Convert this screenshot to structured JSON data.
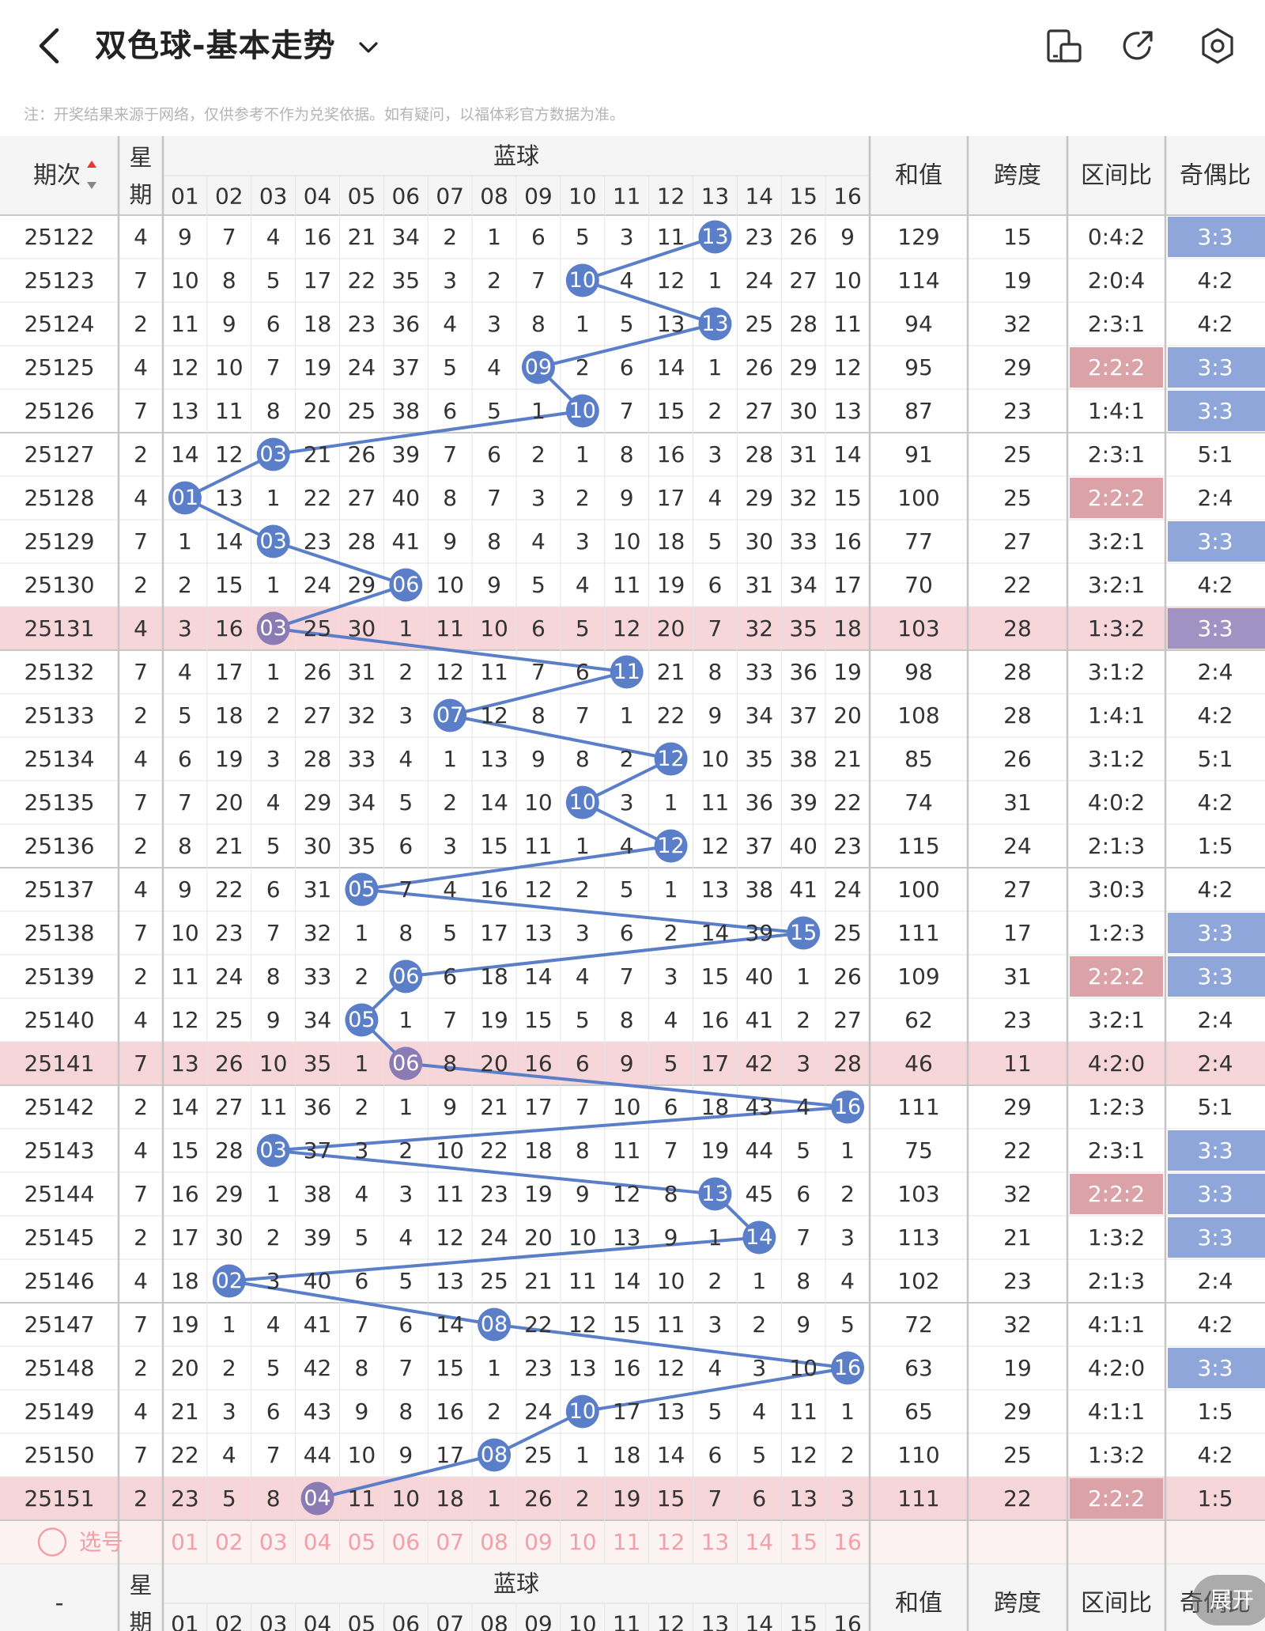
{
  "header": {
    "title": "双色球-基本走势",
    "icons": [
      "back-arrow-icon",
      "chevron-down-icon",
      "device-icon",
      "share-icon",
      "settings-icon"
    ]
  },
  "notice": "注：开奖结果来源于网络，仅供参考不作为兑奖依据。如有疑问，以福体彩官方数据为准。",
  "table": {
    "col_period": "期次",
    "col_week": "星期",
    "col_blue": "蓝球",
    "col_sum": "和值",
    "col_span": "跨度",
    "col_zone": "区间比",
    "col_odd": "奇偶比",
    "blue_numbers": [
      "01",
      "02",
      "03",
      "04",
      "05",
      "06",
      "07",
      "08",
      "09",
      "10",
      "11",
      "12",
      "13",
      "14",
      "15",
      "16"
    ],
    "rows": [
      {
        "period": "25122",
        "week": "4",
        "miss": [
          "9",
          "7",
          "4",
          "16",
          "21",
          "34",
          "2",
          "1",
          "6",
          "5",
          "3",
          "11",
          "13",
          "23",
          "26",
          "9"
        ],
        "blue": "13",
        "sum": "129",
        "span": "15",
        "zone": "0:4:2",
        "odd": "3:3",
        "zone_hl": false,
        "odd_hl": true,
        "row_hl": false
      },
      {
        "period": "25123",
        "week": "7",
        "miss": [
          "10",
          "8",
          "5",
          "17",
          "22",
          "35",
          "3",
          "2",
          "7",
          "10",
          "4",
          "12",
          "1",
          "24",
          "27",
          "10"
        ],
        "blue": "10",
        "sum": "114",
        "span": "19",
        "zone": "2:0:4",
        "odd": "4:2",
        "zone_hl": false,
        "odd_hl": false,
        "row_hl": false
      },
      {
        "period": "25124",
        "week": "2",
        "miss": [
          "11",
          "9",
          "6",
          "18",
          "23",
          "36",
          "4",
          "3",
          "8",
          "1",
          "5",
          "13",
          "13",
          "25",
          "28",
          "11"
        ],
        "blue": "13",
        "sum": "94",
        "span": "32",
        "zone": "2:3:1",
        "odd": "4:2",
        "zone_hl": false,
        "odd_hl": false,
        "row_hl": false
      },
      {
        "period": "25125",
        "week": "4",
        "miss": [
          "12",
          "10",
          "7",
          "19",
          "24",
          "37",
          "5",
          "4",
          "09",
          "2",
          "6",
          "14",
          "1",
          "26",
          "29",
          "12"
        ],
        "blue": "09",
        "sum": "95",
        "span": "29",
        "zone": "2:2:2",
        "odd": "3:3",
        "zone_hl": true,
        "odd_hl": true,
        "row_hl": false
      },
      {
        "period": "25126",
        "week": "7",
        "miss": [
          "13",
          "11",
          "8",
          "20",
          "25",
          "38",
          "6",
          "5",
          "1",
          "10",
          "7",
          "15",
          "2",
          "27",
          "30",
          "13"
        ],
        "blue": "10",
        "sum": "87",
        "span": "23",
        "zone": "1:4:1",
        "odd": "3:3",
        "zone_hl": false,
        "odd_hl": true,
        "row_hl": false
      },
      {
        "period": "25127",
        "week": "2",
        "miss": [
          "14",
          "12",
          "03",
          "21",
          "26",
          "39",
          "7",
          "6",
          "2",
          "1",
          "8",
          "16",
          "3",
          "28",
          "31",
          "14"
        ],
        "blue": "03",
        "sum": "91",
        "span": "25",
        "zone": "2:3:1",
        "odd": "5:1",
        "zone_hl": false,
        "odd_hl": false,
        "row_hl": false
      },
      {
        "period": "25128",
        "week": "4",
        "miss": [
          "01",
          "13",
          "1",
          "22",
          "27",
          "40",
          "8",
          "7",
          "3",
          "2",
          "9",
          "17",
          "4",
          "29",
          "32",
          "15"
        ],
        "blue": "01",
        "sum": "100",
        "span": "25",
        "zone": "2:2:2",
        "odd": "2:4",
        "zone_hl": true,
        "odd_hl": false,
        "row_hl": false
      },
      {
        "period": "25129",
        "week": "7",
        "miss": [
          "1",
          "14",
          "03",
          "23",
          "28",
          "41",
          "9",
          "8",
          "4",
          "3",
          "10",
          "18",
          "5",
          "30",
          "33",
          "16"
        ],
        "blue": "03",
        "sum": "77",
        "span": "27",
        "zone": "3:2:1",
        "odd": "3:3",
        "zone_hl": false,
        "odd_hl": true,
        "row_hl": false
      },
      {
        "period": "25130",
        "week": "2",
        "miss": [
          "2",
          "15",
          "1",
          "24",
          "29",
          "06",
          "10",
          "9",
          "5",
          "4",
          "11",
          "19",
          "6",
          "31",
          "34",
          "17"
        ],
        "blue": "06",
        "sum": "70",
        "span": "22",
        "zone": "3:2:1",
        "odd": "4:2",
        "zone_hl": false,
        "odd_hl": false,
        "row_hl": false
      },
      {
        "period": "25131",
        "week": "4",
        "miss": [
          "3",
          "16",
          "03",
          "25",
          "30",
          "1",
          "11",
          "10",
          "6",
          "5",
          "12",
          "20",
          "7",
          "32",
          "35",
          "18"
        ],
        "blue": "03",
        "sum": "103",
        "span": "28",
        "zone": "1:3:2",
        "odd": "3:3",
        "zone_hl": false,
        "odd_hl": true,
        "row_hl": true
      },
      {
        "period": "25132",
        "week": "7",
        "miss": [
          "4",
          "17",
          "1",
          "26",
          "31",
          "2",
          "12",
          "11",
          "7",
          "6",
          "11",
          "21",
          "8",
          "33",
          "36",
          "19"
        ],
        "blue": "11",
        "sum": "98",
        "span": "28",
        "zone": "3:1:2",
        "odd": "2:4",
        "zone_hl": false,
        "odd_hl": false,
        "row_hl": false
      },
      {
        "period": "25133",
        "week": "2",
        "miss": [
          "5",
          "18",
          "2",
          "27",
          "32",
          "3",
          "07",
          "12",
          "8",
          "7",
          "1",
          "22",
          "9",
          "34",
          "37",
          "20"
        ],
        "blue": "07",
        "sum": "108",
        "span": "28",
        "zone": "1:4:1",
        "odd": "4:2",
        "zone_hl": false,
        "odd_hl": false,
        "row_hl": false
      },
      {
        "period": "25134",
        "week": "4",
        "miss": [
          "6",
          "19",
          "3",
          "28",
          "33",
          "4",
          "1",
          "13",
          "9",
          "8",
          "2",
          "12",
          "10",
          "35",
          "38",
          "21"
        ],
        "blue": "12",
        "sum": "85",
        "span": "26",
        "zone": "3:1:2",
        "odd": "5:1",
        "zone_hl": false,
        "odd_hl": false,
        "row_hl": false
      },
      {
        "period": "25135",
        "week": "7",
        "miss": [
          "7",
          "20",
          "4",
          "29",
          "34",
          "5",
          "2",
          "14",
          "10",
          "10",
          "3",
          "1",
          "11",
          "36",
          "39",
          "22"
        ],
        "blue": "10",
        "sum": "74",
        "span": "31",
        "zone": "4:0:2",
        "odd": "4:2",
        "zone_hl": false,
        "odd_hl": false,
        "row_hl": false
      },
      {
        "period": "25136",
        "week": "2",
        "miss": [
          "8",
          "21",
          "5",
          "30",
          "35",
          "6",
          "3",
          "15",
          "11",
          "1",
          "4",
          "12",
          "12",
          "37",
          "40",
          "23"
        ],
        "blue": "12",
        "sum": "115",
        "span": "24",
        "zone": "2:1:3",
        "odd": "1:5",
        "zone_hl": false,
        "odd_hl": false,
        "row_hl": false
      },
      {
        "period": "25137",
        "week": "4",
        "miss": [
          "9",
          "22",
          "6",
          "31",
          "05",
          "7",
          "4",
          "16",
          "12",
          "2",
          "5",
          "1",
          "13",
          "38",
          "41",
          "24"
        ],
        "blue": "05",
        "sum": "100",
        "span": "27",
        "zone": "3:0:3",
        "odd": "4:2",
        "zone_hl": false,
        "odd_hl": false,
        "row_hl": false
      },
      {
        "period": "25138",
        "week": "7",
        "miss": [
          "10",
          "23",
          "7",
          "32",
          "1",
          "8",
          "5",
          "17",
          "13",
          "3",
          "6",
          "2",
          "14",
          "39",
          "15",
          "25"
        ],
        "blue": "15",
        "sum": "111",
        "span": "17",
        "zone": "1:2:3",
        "odd": "3:3",
        "zone_hl": false,
        "odd_hl": true,
        "row_hl": false
      },
      {
        "period": "25139",
        "week": "2",
        "miss": [
          "11",
          "24",
          "8",
          "33",
          "2",
          "06",
          "6",
          "18",
          "14",
          "4",
          "7",
          "3",
          "15",
          "40",
          "1",
          "26"
        ],
        "blue": "06",
        "sum": "109",
        "span": "31",
        "zone": "2:2:2",
        "odd": "3:3",
        "zone_hl": true,
        "odd_hl": true,
        "row_hl": false
      },
      {
        "period": "25140",
        "week": "4",
        "miss": [
          "12",
          "25",
          "9",
          "34",
          "05",
          "1",
          "7",
          "19",
          "15",
          "5",
          "8",
          "4",
          "16",
          "41",
          "2",
          "27"
        ],
        "blue": "05",
        "sum": "62",
        "span": "23",
        "zone": "3:2:1",
        "odd": "2:4",
        "zone_hl": false,
        "odd_hl": false,
        "row_hl": false
      },
      {
        "period": "25141",
        "week": "7",
        "miss": [
          "13",
          "26",
          "10",
          "35",
          "1",
          "06",
          "8",
          "20",
          "16",
          "6",
          "9",
          "5",
          "17",
          "42",
          "3",
          "28"
        ],
        "blue": "06",
        "sum": "46",
        "span": "11",
        "zone": "4:2:0",
        "odd": "2:4",
        "zone_hl": false,
        "odd_hl": false,
        "row_hl": true
      },
      {
        "period": "25142",
        "week": "2",
        "miss": [
          "14",
          "27",
          "11",
          "36",
          "2",
          "1",
          "9",
          "21",
          "17",
          "7",
          "10",
          "6",
          "18",
          "43",
          "4",
          "16"
        ],
        "blue": "16",
        "sum": "111",
        "span": "29",
        "zone": "1:2:3",
        "odd": "5:1",
        "zone_hl": false,
        "odd_hl": false,
        "row_hl": false
      },
      {
        "period": "25143",
        "week": "4",
        "miss": [
          "15",
          "28",
          "03",
          "37",
          "3",
          "2",
          "10",
          "22",
          "18",
          "8",
          "11",
          "7",
          "19",
          "44",
          "5",
          "1"
        ],
        "blue": "03",
        "sum": "75",
        "span": "22",
        "zone": "2:3:1",
        "odd": "3:3",
        "zone_hl": false,
        "odd_hl": true,
        "row_hl": false
      },
      {
        "period": "25144",
        "week": "7",
        "miss": [
          "16",
          "29",
          "1",
          "38",
          "4",
          "3",
          "11",
          "23",
          "19",
          "9",
          "12",
          "8",
          "13",
          "45",
          "6",
          "2"
        ],
        "blue": "13",
        "sum": "103",
        "span": "32",
        "zone": "2:2:2",
        "odd": "3:3",
        "zone_hl": true,
        "odd_hl": true,
        "row_hl": false
      },
      {
        "period": "25145",
        "week": "2",
        "miss": [
          "17",
          "30",
          "2",
          "39",
          "5",
          "4",
          "12",
          "24",
          "20",
          "10",
          "13",
          "9",
          "1",
          "14",
          "7",
          "3"
        ],
        "blue": "14",
        "sum": "113",
        "span": "21",
        "zone": "1:3:2",
        "odd": "3:3",
        "zone_hl": false,
        "odd_hl": true,
        "row_hl": false
      },
      {
        "period": "25146",
        "week": "4",
        "miss": [
          "18",
          "02",
          "3",
          "40",
          "6",
          "5",
          "13",
          "25",
          "21",
          "11",
          "14",
          "10",
          "2",
          "1",
          "8",
          "4"
        ],
        "blue": "02",
        "sum": "102",
        "span": "23",
        "zone": "2:1:3",
        "odd": "2:4",
        "zone_hl": false,
        "odd_hl": false,
        "row_hl": false
      },
      {
        "period": "25147",
        "week": "7",
        "miss": [
          "19",
          "1",
          "4",
          "41",
          "7",
          "6",
          "14",
          "08",
          "22",
          "12",
          "15",
          "11",
          "3",
          "2",
          "9",
          "5"
        ],
        "blue": "08",
        "sum": "72",
        "span": "32",
        "zone": "4:1:1",
        "odd": "4:2",
        "zone_hl": false,
        "odd_hl": false,
        "row_hl": false
      },
      {
        "period": "25148",
        "week": "2",
        "miss": [
          "20",
          "2",
          "5",
          "42",
          "8",
          "7",
          "15",
          "1",
          "23",
          "13",
          "16",
          "12",
          "4",
          "3",
          "10",
          "16"
        ],
        "blue": "16",
        "sum": "63",
        "span": "19",
        "zone": "4:2:0",
        "odd": "3:3",
        "zone_hl": false,
        "odd_hl": true,
        "row_hl": false
      },
      {
        "period": "25149",
        "week": "4",
        "miss": [
          "21",
          "3",
          "6",
          "43",
          "9",
          "8",
          "16",
          "2",
          "24",
          "10",
          "17",
          "13",
          "5",
          "4",
          "11",
          "1"
        ],
        "blue": "10",
        "sum": "65",
        "span": "29",
        "zone": "4:1:1",
        "odd": "1:5",
        "zone_hl": false,
        "odd_hl": false,
        "row_hl": false
      },
      {
        "period": "25150",
        "week": "7",
        "miss": [
          "22",
          "4",
          "7",
          "44",
          "10",
          "9",
          "17",
          "08",
          "25",
          "1",
          "18",
          "14",
          "6",
          "5",
          "12",
          "2"
        ],
        "blue": "08",
        "sum": "110",
        "span": "25",
        "zone": "1:3:2",
        "odd": "4:2",
        "zone_hl": false,
        "odd_hl": false,
        "row_hl": false
      },
      {
        "period": "25151",
        "week": "2",
        "miss": [
          "23",
          "5",
          "8",
          "04",
          "11",
          "10",
          "18",
          "1",
          "26",
          "2",
          "19",
          "15",
          "7",
          "6",
          "13",
          "3"
        ],
        "blue": "04",
        "sum": "111",
        "span": "22",
        "zone": "2:2:2",
        "odd": "1:5",
        "zone_hl": true,
        "odd_hl": false,
        "row_hl": true
      }
    ],
    "select_label": "选号",
    "footer_period": "-",
    "expand_label": "展开"
  },
  "colors": {
    "blue_ball": "#5b7ec9",
    "blue_ball_on_pink": "#8a7bb5",
    "trend_line": "#5b7ec9",
    "row_highlight": "#f6d6d8",
    "odd_highlight": "#8ea6d9",
    "zone_highlight": "#dba3a8",
    "select_text": "#f2a0a8"
  }
}
